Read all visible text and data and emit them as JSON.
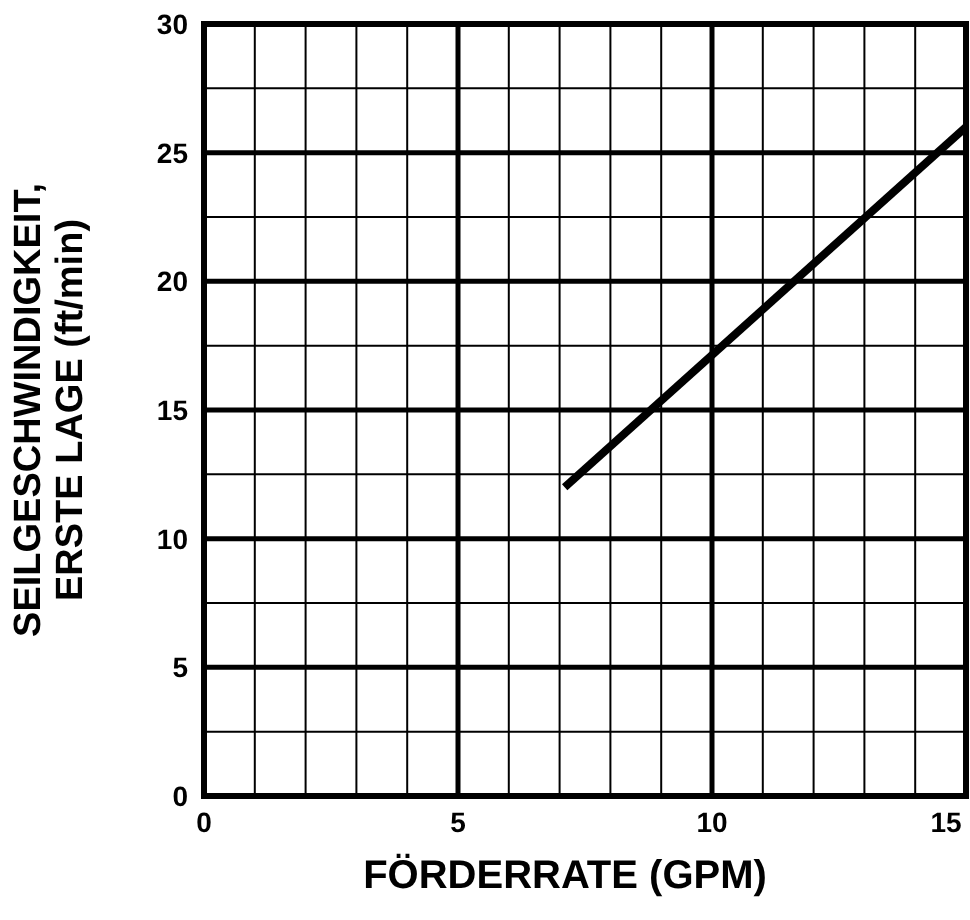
{
  "chart_data": {
    "type": "line",
    "xlabel": "FÖRDERRATE (GPM)",
    "ylabel": "SEILGESCHWINDIGKEIT,\nERSTE LAGE (ft/min)",
    "x": [
      7.1,
      15
    ],
    "series": [
      {
        "color": "#000000",
        "values": [
          12,
          26
        ]
      }
    ],
    "xlim": [
      0,
      15
    ],
    "ylim": [
      0,
      30
    ],
    "xticks": [
      0,
      5,
      10,
      15
    ],
    "yticks": [
      0,
      5,
      10,
      15,
      20,
      25,
      30
    ],
    "grid": true,
    "marker": "none",
    "line_style": "solid"
  }
}
